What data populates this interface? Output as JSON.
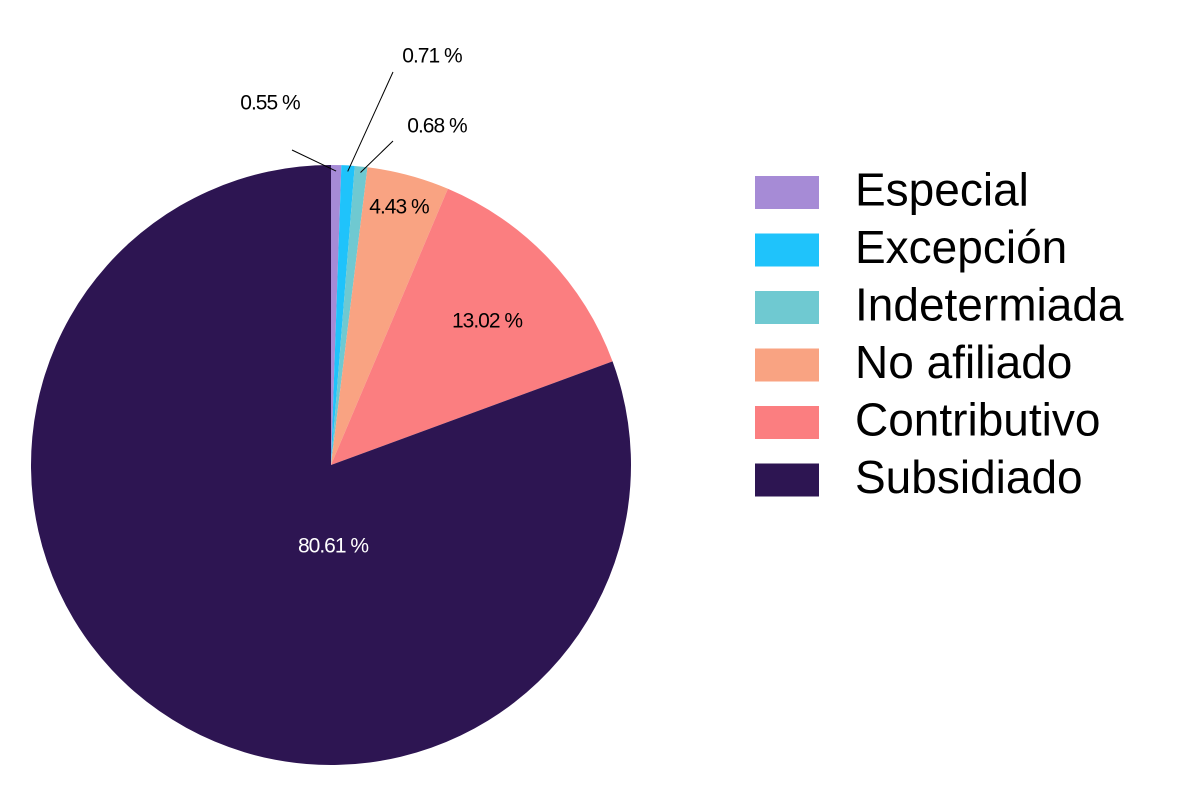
{
  "chart_data": {
    "type": "pie",
    "title": "",
    "start_angle_deg": 0,
    "direction": "clockwise",
    "legend_position": "right",
    "slices": [
      {
        "label": "Especial",
        "value": 0.55,
        "display": "0.55 %",
        "color": "#a68bd6",
        "label_color": "#000000"
      },
      {
        "label": "Excepción",
        "value": 0.71,
        "display": "0.71 %",
        "color": "#1fc3fb",
        "label_color": "#000000"
      },
      {
        "label": "Indetermiada",
        "value": 0.68,
        "display": "0.68 %",
        "color": "#6fc9d1",
        "label_color": "#000000"
      },
      {
        "label": "No afiliado",
        "value": 4.43,
        "display": "4.43 %",
        "color": "#f9a382",
        "label_color": "#000000"
      },
      {
        "label": "Contributivo",
        "value": 13.02,
        "display": "13.02 %",
        "color": "#fb7e80",
        "label_color": "#000000"
      },
      {
        "label": "Subsidiado",
        "value": 80.61,
        "display": "80.61 %",
        "color": "#2d1552",
        "label_color": "#ffffff"
      }
    ]
  }
}
